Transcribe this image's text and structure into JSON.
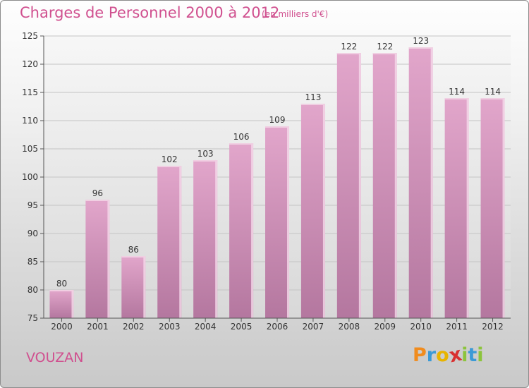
{
  "header": {
    "title": "Charges de Personnel 2000 à 2012",
    "unit": "(en milliers d'€)"
  },
  "footer": {
    "commune": "VOUZAN",
    "logo_text": "Proxiti"
  },
  "colors": {
    "accent": "#d0508f",
    "bar_light": "#e2a6cb",
    "bar_dark": "#b4779f",
    "bar_top": "#f0cfe2",
    "logo": [
      "#f08c1e",
      "#3b9ad6",
      "#e8b400",
      "#d93030",
      "#8cc43c",
      "#3b9ad6",
      "#8cc43c"
    ]
  },
  "chart_data": {
    "type": "bar",
    "categories": [
      "2000",
      "2001",
      "2002",
      "2003",
      "2004",
      "2005",
      "2006",
      "2007",
      "2008",
      "2009",
      "2010",
      "2011",
      "2012"
    ],
    "values": [
      80,
      96,
      86,
      102,
      103,
      106,
      109,
      113,
      122,
      122,
      123,
      114,
      114
    ],
    "title": "Charges de Personnel 2000 à 2012",
    "ylim": [
      75,
      125
    ],
    "yticks": [
      75,
      80,
      85,
      90,
      95,
      100,
      105,
      110,
      115,
      120,
      125
    ],
    "grid": true,
    "data_labels": true
  }
}
